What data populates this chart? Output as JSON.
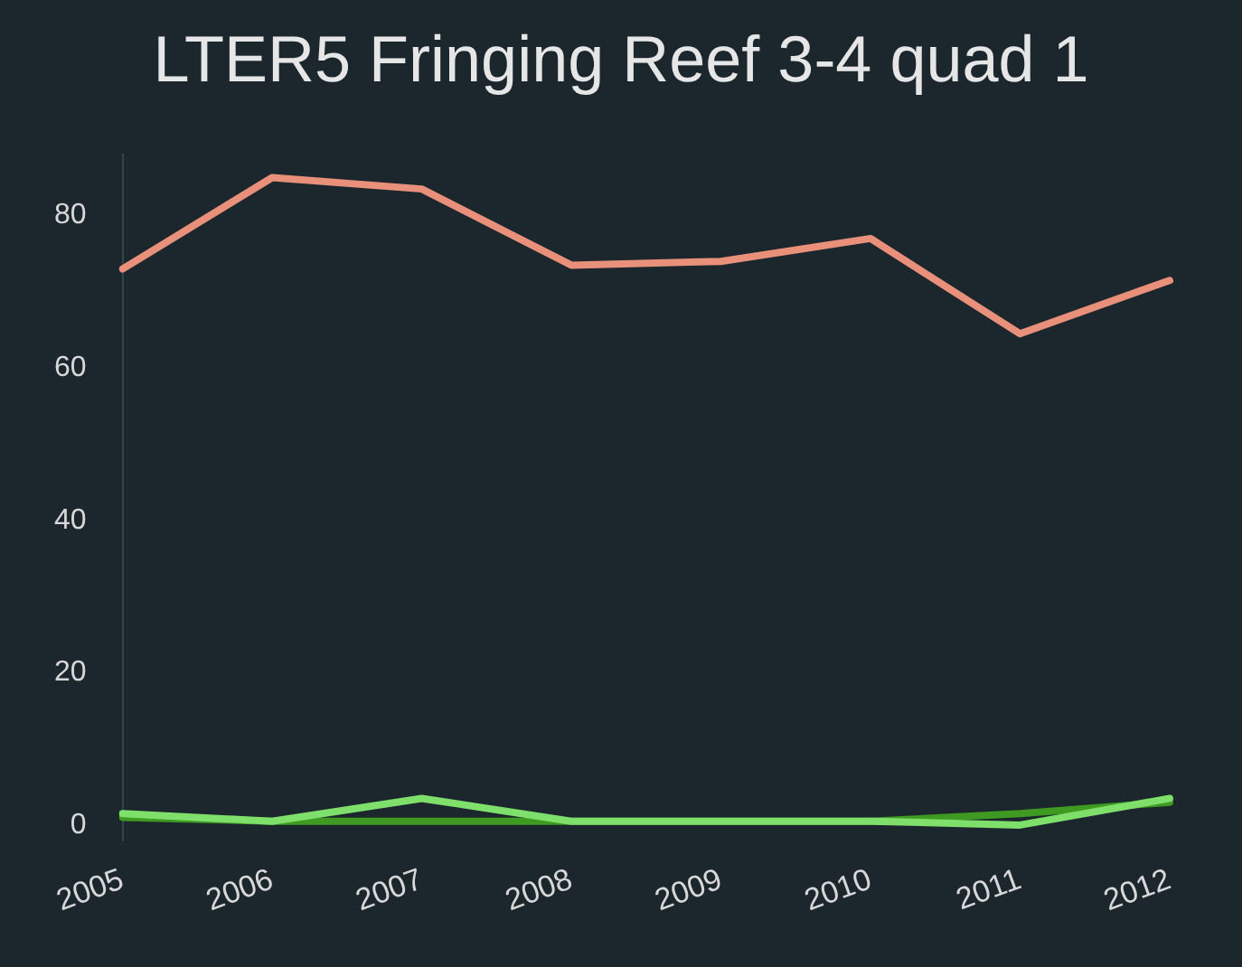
{
  "chart_data": {
    "type": "line",
    "title": "LTER5 Fringing Reef 3-4 quad 1",
    "categories": [
      "2005",
      "2006",
      "2007",
      "2008",
      "2009",
      "2010",
      "2011",
      "2012"
    ],
    "series": [
      {
        "color": "#e8907a",
        "values": [
          73,
          85,
          83.5,
          73.5,
          74,
          77,
          64.5,
          71.5
        ]
      },
      {
        "color": "#7ee06a",
        "values": [
          1.5,
          0.5,
          3.5,
          0.5,
          0.5,
          0.5,
          0,
          3.5
        ]
      },
      {
        "color": "#3f9a22",
        "values": [
          1,
          0.5,
          0.5,
          0.5,
          0.5,
          0.5,
          1.5,
          3
        ]
      }
    ],
    "ylim": [
      -2,
      88
    ],
    "yticks": [
      0,
      20,
      40,
      60,
      80
    ],
    "grid": false,
    "legend": false,
    "marker": "none",
    "line_style": "solid"
  }
}
